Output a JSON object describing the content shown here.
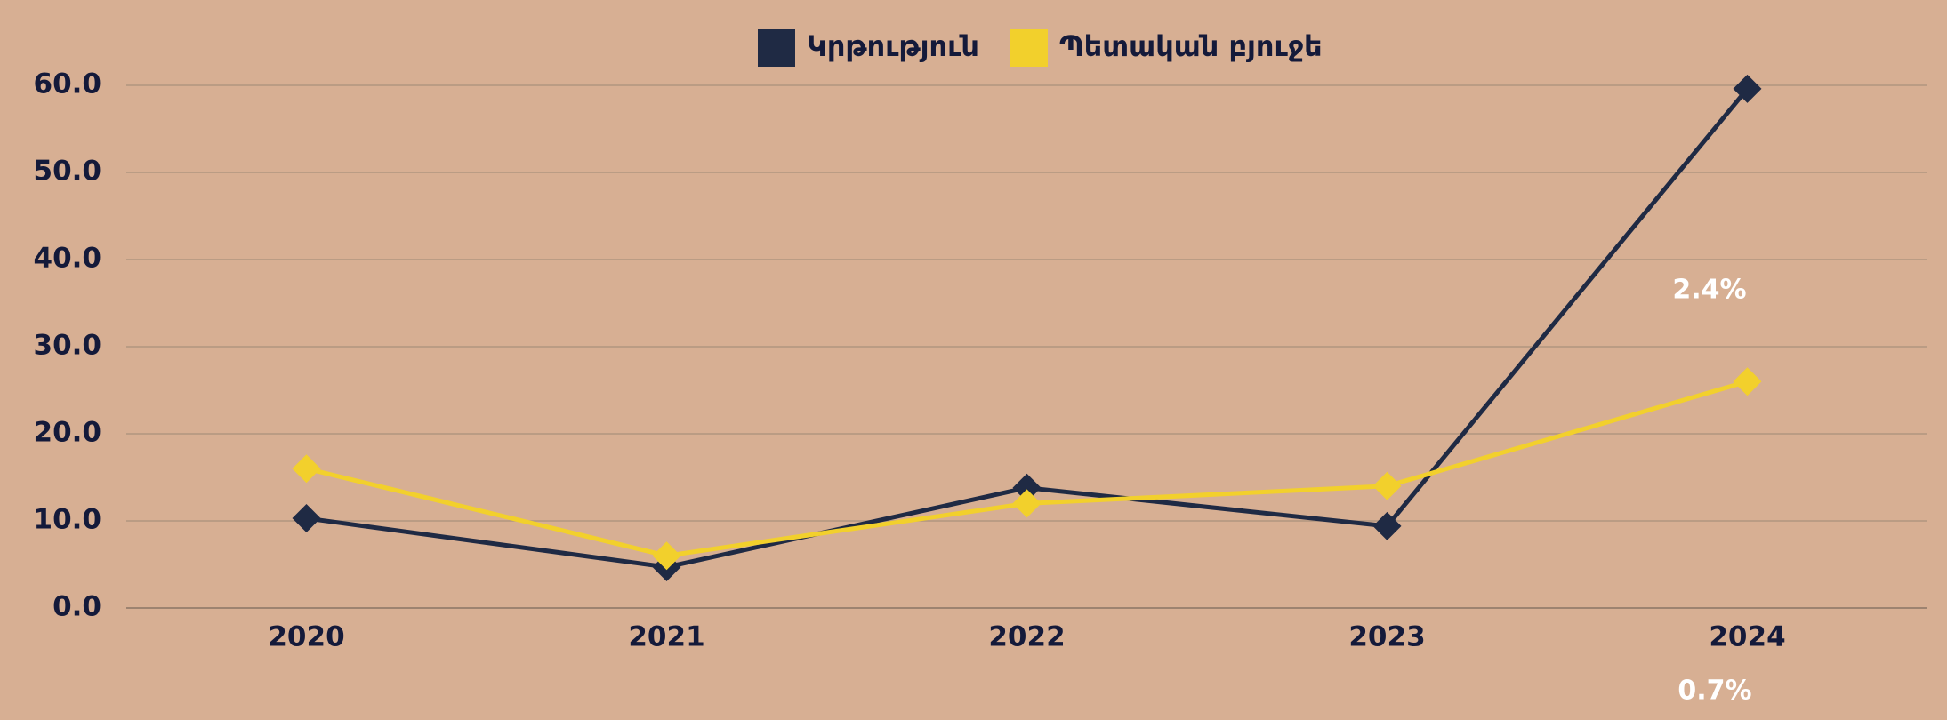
{
  "chart_data": {
    "type": "line",
    "categories": [
      "2020",
      "2021",
      "2022",
      "2023",
      "2024"
    ],
    "series": [
      {
        "name": "Կրթություն",
        "color": "#1f2a44",
        "values": [
          10.3,
          4.7,
          13.8,
          9.4,
          59.6
        ]
      },
      {
        "name": "Պետական բյուջե",
        "color": "#f2d02c",
        "values": [
          16.0,
          6.0,
          12.0,
          14.0,
          26.0
        ]
      }
    ],
    "ylim": [
      0,
      60
    ],
    "yticks": [
      {
        "value": 0,
        "label": "0.0"
      },
      {
        "value": 10,
        "label": "10.0"
      },
      {
        "value": 20,
        "label": "20.0"
      },
      {
        "value": 30,
        "label": "30.0"
      },
      {
        "value": 40,
        "label": "40.0"
      },
      {
        "value": 50,
        "label": "50.0"
      },
      {
        "value": 60,
        "label": "60.0"
      }
    ],
    "grid": true,
    "legend": "top",
    "annotations": [
      "2.4%",
      "0.7%"
    ]
  }
}
